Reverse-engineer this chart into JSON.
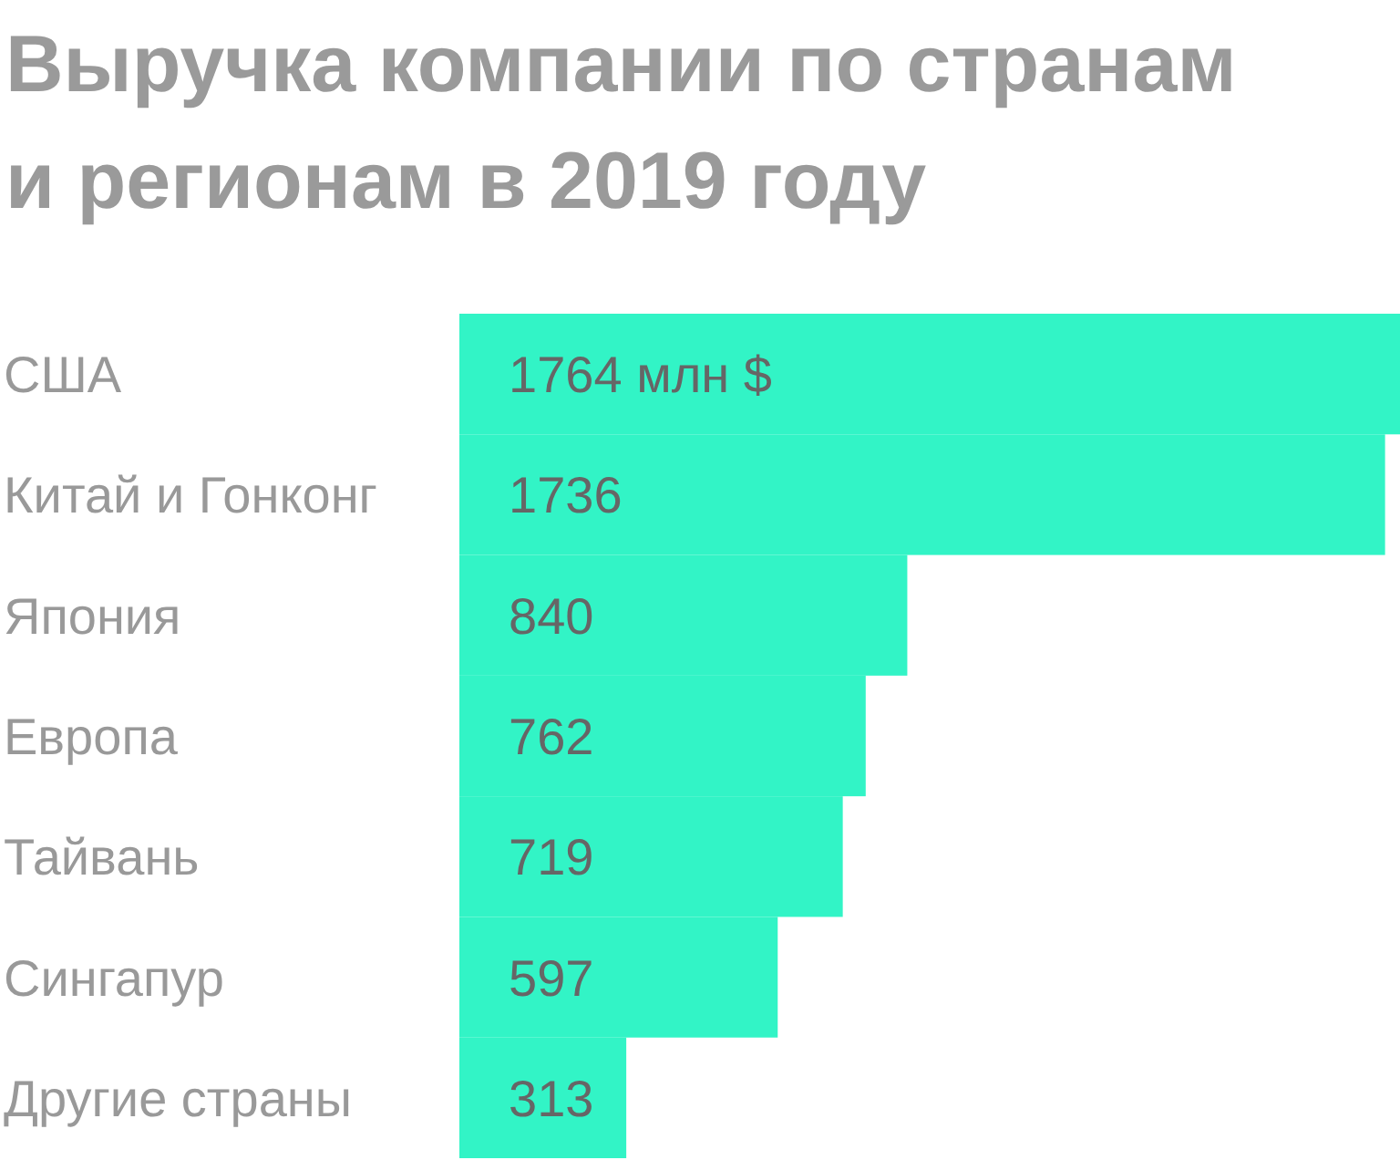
{
  "chart_data": {
    "type": "bar",
    "orientation": "horizontal",
    "title": "Выручка компании по странам и регионам в 2019 году",
    "categories": [
      "США",
      "Китай и Гонконг",
      "Япония",
      "Европа",
      "Тайвань",
      "Сингапур",
      "Другие страны"
    ],
    "values": [
      1764,
      1736,
      840,
      762,
      719,
      597,
      313
    ],
    "color": "#32f4c6",
    "value_labels": [
      "1764 млн $",
      "1736",
      "840",
      "762",
      "719",
      "597",
      "313"
    ]
  }
}
